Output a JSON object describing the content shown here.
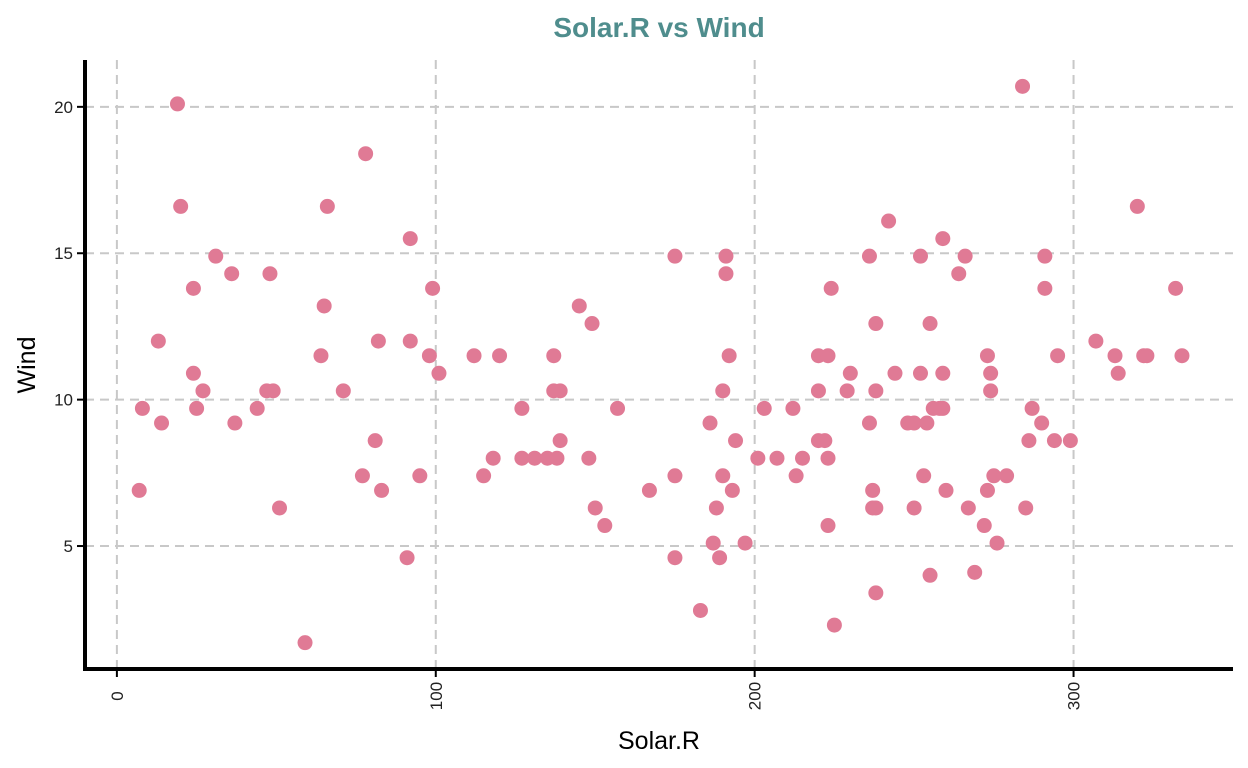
{
  "chart_data": {
    "type": "scatter",
    "title": "Solar.R vs Wind",
    "xlabel": "Solar.R",
    "ylabel": "Wind",
    "xlim": [
      -10,
      350
    ],
    "ylim": [
      0.8,
      21.6
    ],
    "xticks": [
      0,
      100,
      200,
      300
    ],
    "yticks": [
      5,
      10,
      15,
      20
    ],
    "grid": true,
    "colors": {
      "title": "#4f8d8d",
      "point": "#e07a95"
    },
    "points": [
      [
        7,
        6.9
      ],
      [
        8,
        9.7
      ],
      [
        13,
        12.0
      ],
      [
        14,
        9.2
      ],
      [
        19,
        20.1
      ],
      [
        20,
        16.6
      ],
      [
        24,
        13.8
      ],
      [
        24,
        10.9
      ],
      [
        25,
        9.7
      ],
      [
        27,
        10.3
      ],
      [
        31,
        14.9
      ],
      [
        36,
        14.3
      ],
      [
        37,
        9.2
      ],
      [
        44,
        9.7
      ],
      [
        47,
        10.3
      ],
      [
        48,
        14.3
      ],
      [
        49,
        10.3
      ],
      [
        51,
        6.3
      ],
      [
        59,
        1.7
      ],
      [
        64,
        11.5
      ],
      [
        65,
        13.2
      ],
      [
        66,
        16.6
      ],
      [
        71,
        10.3
      ],
      [
        77,
        7.4
      ],
      [
        78,
        18.4
      ],
      [
        81,
        8.6
      ],
      [
        82,
        12.0
      ],
      [
        83,
        6.9
      ],
      [
        91,
        4.6
      ],
      [
        92,
        15.5
      ],
      [
        92,
        12.0
      ],
      [
        95,
        7.4
      ],
      [
        98,
        11.5
      ],
      [
        99,
        13.8
      ],
      [
        101,
        10.9
      ],
      [
        112,
        11.5
      ],
      [
        115,
        7.4
      ],
      [
        118,
        8.0
      ],
      [
        120,
        11.5
      ],
      [
        127,
        9.7
      ],
      [
        127,
        8.0
      ],
      [
        131,
        8.0
      ],
      [
        135,
        8.0
      ],
      [
        137,
        11.5
      ],
      [
        137,
        10.3
      ],
      [
        138,
        8.0
      ],
      [
        139,
        10.3
      ],
      [
        139,
        8.6
      ],
      [
        145,
        13.2
      ],
      [
        148,
        8.0
      ],
      [
        149,
        12.6
      ],
      [
        150,
        6.3
      ],
      [
        153,
        5.7
      ],
      [
        157,
        9.7
      ],
      [
        167,
        6.9
      ],
      [
        175,
        14.9
      ],
      [
        175,
        7.4
      ],
      [
        175,
        4.6
      ],
      [
        183,
        2.8
      ],
      [
        186,
        9.2
      ],
      [
        187,
        5.1
      ],
      [
        188,
        6.3
      ],
      [
        189,
        4.6
      ],
      [
        190,
        10.3
      ],
      [
        190,
        7.4
      ],
      [
        191,
        14.9
      ],
      [
        191,
        14.3
      ],
      [
        192,
        11.5
      ],
      [
        193,
        6.9
      ],
      [
        194,
        8.6
      ],
      [
        197,
        5.1
      ],
      [
        201,
        8.0
      ],
      [
        203,
        9.7
      ],
      [
        207,
        8.0
      ],
      [
        212,
        9.7
      ],
      [
        213,
        7.4
      ],
      [
        215,
        8.0
      ],
      [
        220,
        11.5
      ],
      [
        220,
        10.3
      ],
      [
        220,
        8.6
      ],
      [
        222,
        8.6
      ],
      [
        223,
        11.5
      ],
      [
        223,
        8.0
      ],
      [
        223,
        5.7
      ],
      [
        224,
        13.8
      ],
      [
        225,
        2.3
      ],
      [
        229,
        10.3
      ],
      [
        230,
        10.9
      ],
      [
        236,
        14.9
      ],
      [
        236,
        9.2
      ],
      [
        237,
        6.9
      ],
      [
        237,
        6.3
      ],
      [
        238,
        12.6
      ],
      [
        238,
        10.3
      ],
      [
        238,
        6.3
      ],
      [
        238,
        3.4
      ],
      [
        242,
        16.1
      ],
      [
        244,
        10.9
      ],
      [
        248,
        9.2
      ],
      [
        250,
        9.2
      ],
      [
        250,
        6.3
      ],
      [
        252,
        14.9
      ],
      [
        252,
        10.9
      ],
      [
        253,
        7.4
      ],
      [
        254,
        9.2
      ],
      [
        255,
        12.6
      ],
      [
        255,
        4.0
      ],
      [
        256,
        9.7
      ],
      [
        258,
        9.7
      ],
      [
        259,
        15.5
      ],
      [
        259,
        10.9
      ],
      [
        259,
        9.7
      ],
      [
        260,
        6.9
      ],
      [
        264,
        14.3
      ],
      [
        266,
        14.9
      ],
      [
        267,
        6.3
      ],
      [
        269,
        4.1
      ],
      [
        272,
        5.7
      ],
      [
        273,
        11.5
      ],
      [
        273,
        6.9
      ],
      [
        274,
        10.9
      ],
      [
        274,
        10.3
      ],
      [
        275,
        7.4
      ],
      [
        276,
        5.1
      ],
      [
        279,
        7.4
      ],
      [
        284,
        20.7
      ],
      [
        285,
        6.3
      ],
      [
        286,
        8.6
      ],
      [
        287,
        9.7
      ],
      [
        290,
        9.2
      ],
      [
        291,
        14.9
      ],
      [
        291,
        13.8
      ],
      [
        294,
        8.6
      ],
      [
        295,
        11.5
      ],
      [
        299,
        8.6
      ],
      [
        307,
        12.0
      ],
      [
        313,
        11.5
      ],
      [
        314,
        10.9
      ],
      [
        320,
        16.6
      ],
      [
        322,
        11.5
      ],
      [
        323,
        11.5
      ],
      [
        332,
        13.8
      ],
      [
        334,
        11.5
      ]
    ]
  }
}
